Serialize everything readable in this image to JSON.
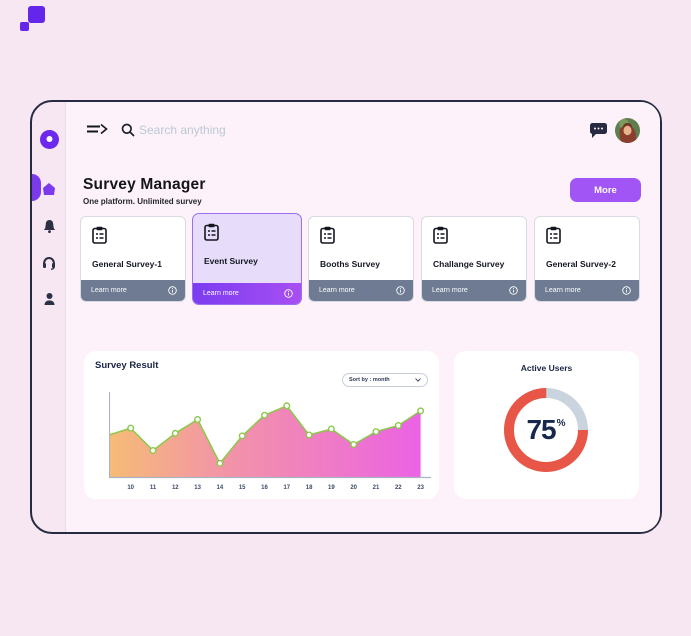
{
  "page": {
    "background": "#f7e7f3",
    "accent_purple": "#7c3aed",
    "decor_square_color": "#6426ea"
  },
  "window": {
    "border_color": "#272b41",
    "panel_bg": "#fdf2f9"
  },
  "sidebar": {
    "items": [
      {
        "id": "logo",
        "icon": "logo-dot-icon",
        "active": false
      },
      {
        "id": "home",
        "icon": "home-icon",
        "active": true
      },
      {
        "id": "notifications",
        "icon": "bell-icon",
        "active": false
      },
      {
        "id": "support",
        "icon": "headset-icon",
        "active": false
      },
      {
        "id": "profile",
        "icon": "user-icon",
        "active": false
      }
    ]
  },
  "topbar": {
    "search_placeholder": "Search anything"
  },
  "header": {
    "title": "Survey Manager",
    "subtitle": "One platform. Unlimited survey",
    "more_label": "More"
  },
  "surveys": {
    "cards": [
      {
        "title": "General Survey-1",
        "cta": "Learn more",
        "selected": false
      },
      {
        "title": "Event Survey",
        "cta": "Learn more",
        "selected": true
      },
      {
        "title": "Booths Survey",
        "cta": "Learn more",
        "selected": false
      },
      {
        "title": "Challange Survey",
        "cta": "Learn more",
        "selected": false
      },
      {
        "title": "General Survey-2",
        "cta": "Learn more",
        "selected": false
      }
    ],
    "footer_color": "#6f7b93",
    "selected_footer_gradient": [
      "#7b3cf0",
      "#a84ff2"
    ]
  },
  "survey_result": {
    "title": "Survey Result",
    "sort_label": "Sort by : month"
  },
  "chart_data": {
    "type": "area",
    "title": "Survey Result",
    "x": [
      10,
      11,
      12,
      13,
      14,
      15,
      16,
      17,
      18,
      19,
      20,
      21,
      22,
      23
    ],
    "values": [
      58,
      32,
      52,
      68,
      17,
      49,
      73,
      84,
      50,
      57,
      39,
      54,
      61,
      78
    ],
    "lead_in_value": 50,
    "xlabel": "",
    "ylabel": "",
    "ylim": [
      0,
      100
    ],
    "grid": false,
    "legend": null,
    "line_color": "#8bc94c",
    "marker": {
      "fill": "#ffffff",
      "stroke": "#8bc94c"
    },
    "area_gradient": [
      "#f5b669",
      "#f28f9b",
      "#ee72bd",
      "#e955e2"
    ],
    "axis_color": "#a9b3c2",
    "tick_color": "#3c4968"
  },
  "active_users": {
    "title": "Active Users",
    "percent": 75,
    "suffix": "%",
    "ring_color": "#e85647",
    "track_color": "#c9d4de",
    "text_color": "#16294d"
  }
}
